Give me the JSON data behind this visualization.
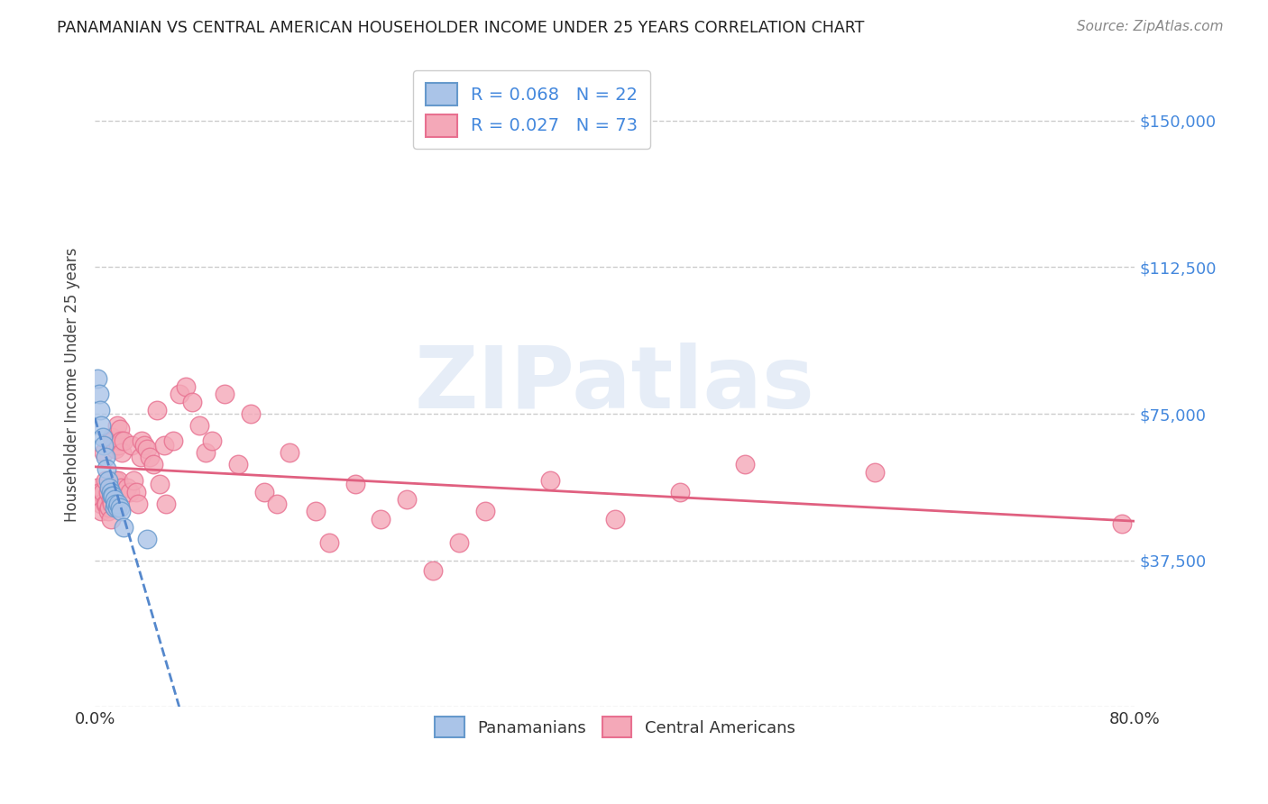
{
  "title": "PANAMANIAN VS CENTRAL AMERICAN HOUSEHOLDER INCOME UNDER 25 YEARS CORRELATION CHART",
  "source": "Source: ZipAtlas.com",
  "ylabel": "Householder Income Under 25 years",
  "xmin": 0.0,
  "xmax": 0.8,
  "ymin": 0,
  "ymax": 165000,
  "yticks": [
    0,
    37500,
    75000,
    112500,
    150000
  ],
  "ytick_labels": [
    "",
    "$37,500",
    "$75,000",
    "$112,500",
    "$150,000"
  ],
  "xticks": [
    0.0,
    0.1,
    0.2,
    0.3,
    0.4,
    0.5,
    0.6,
    0.7,
    0.8
  ],
  "xtick_labels": [
    "0.0%",
    "",
    "",
    "",
    "",
    "",
    "",
    "",
    "80.0%"
  ],
  "watermark": "ZIPatlas",
  "pan_color": "#aac4e8",
  "ca_color": "#f4a8b8",
  "pan_edge": "#6699cc",
  "ca_edge": "#e87090",
  "trend_pan_color": "#5588cc",
  "trend_ca_color": "#e06080",
  "legend_r_pan": "R = 0.068",
  "legend_n_pan": "N = 22",
  "legend_r_ca": "R = 0.027",
  "legend_n_ca": "N = 73",
  "grid_color": "#cccccc",
  "background_color": "#ffffff",
  "pan_x": [
    0.002,
    0.003,
    0.004,
    0.005,
    0.006,
    0.007,
    0.008,
    0.009,
    0.01,
    0.011,
    0.012,
    0.013,
    0.014,
    0.015,
    0.015,
    0.016,
    0.017,
    0.018,
    0.019,
    0.02,
    0.022,
    0.04
  ],
  "pan_y": [
    84000,
    80000,
    76000,
    72000,
    69000,
    67000,
    64000,
    61000,
    58000,
    56000,
    55000,
    54000,
    54000,
    53000,
    51000,
    52000,
    51000,
    52000,
    51000,
    50000,
    46000,
    43000
  ],
  "ca_x": [
    0.002,
    0.003,
    0.004,
    0.005,
    0.005,
    0.006,
    0.007,
    0.008,
    0.008,
    0.009,
    0.01,
    0.01,
    0.011,
    0.012,
    0.012,
    0.013,
    0.013,
    0.014,
    0.015,
    0.015,
    0.016,
    0.016,
    0.017,
    0.018,
    0.018,
    0.019,
    0.02,
    0.02,
    0.021,
    0.022,
    0.025,
    0.027,
    0.028,
    0.03,
    0.032,
    0.033,
    0.035,
    0.036,
    0.038,
    0.04,
    0.042,
    0.045,
    0.048,
    0.05,
    0.053,
    0.055,
    0.06,
    0.065,
    0.07,
    0.075,
    0.08,
    0.085,
    0.09,
    0.1,
    0.11,
    0.12,
    0.13,
    0.14,
    0.15,
    0.17,
    0.18,
    0.2,
    0.22,
    0.24,
    0.26,
    0.28,
    0.3,
    0.35,
    0.4,
    0.45,
    0.5,
    0.6,
    0.79
  ],
  "ca_y": [
    56000,
    54000,
    55000,
    52000,
    50000,
    55000,
    65000,
    52000,
    58000,
    52000,
    50000,
    55000,
    51000,
    48000,
    53000,
    69000,
    52000,
    68000,
    67000,
    54000,
    66000,
    58000,
    72000,
    67000,
    58000,
    71000,
    68000,
    56000,
    65000,
    68000,
    56000,
    55000,
    67000,
    58000,
    55000,
    52000,
    64000,
    68000,
    67000,
    66000,
    64000,
    62000,
    76000,
    57000,
    67000,
    52000,
    68000,
    80000,
    82000,
    78000,
    72000,
    65000,
    68000,
    80000,
    62000,
    75000,
    55000,
    52000,
    65000,
    50000,
    42000,
    57000,
    48000,
    53000,
    35000,
    42000,
    50000,
    58000,
    48000,
    55000,
    62000,
    60000,
    47000
  ]
}
